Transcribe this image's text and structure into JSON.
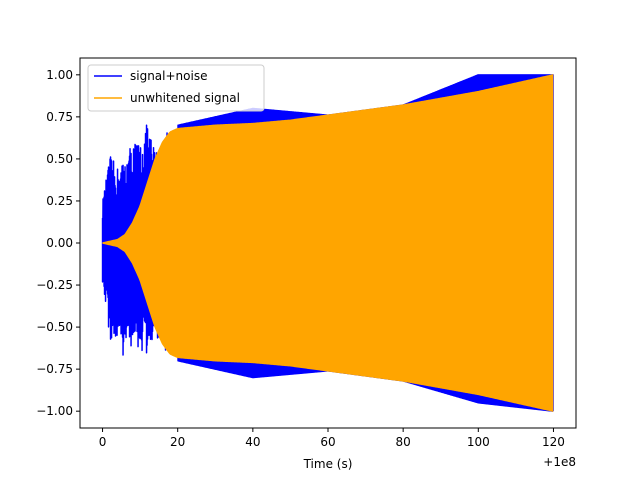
{
  "chart_data": {
    "type": "line",
    "title": "",
    "xlabel": "Time (s)",
    "ylabel": "",
    "x_offset_label": "+1e8",
    "xlim": [
      -6,
      126
    ],
    "ylim": [
      -1.1,
      1.1
    ],
    "x_ticks": [
      0,
      20,
      40,
      60,
      80,
      100,
      120
    ],
    "x_tick_labels": [
      "0",
      "20",
      "40",
      "60",
      "80",
      "100",
      "120"
    ],
    "y_ticks": [
      -1.0,
      -0.75,
      -0.5,
      -0.25,
      0.0,
      0.25,
      0.5,
      0.75,
      1.0
    ],
    "y_tick_labels": [
      "−1.00",
      "−0.75",
      "−0.50",
      "−0.25",
      "0.00",
      "0.25",
      "0.50",
      "0.75",
      "1.00"
    ],
    "grid": false,
    "legend_position": "top-left",
    "series": [
      {
        "name": "signal+noise",
        "color": "#0000ff",
        "x_range": [
          0,
          120
        ],
        "approx_envelope": {
          "x": [
            0,
            2,
            4,
            6,
            8,
            10,
            12,
            14,
            16,
            18,
            20,
            40,
            60,
            80,
            100,
            120
          ],
          "upper": [
            0.25,
            0.52,
            0.45,
            0.5,
            0.62,
            0.6,
            0.72,
            0.55,
            0.62,
            0.7,
            0.7,
            0.8,
            0.76,
            0.82,
            1.0,
            1.0
          ],
          "lower": [
            -0.25,
            -0.58,
            -0.65,
            -0.68,
            -0.6,
            -0.65,
            -0.68,
            -0.55,
            -0.62,
            -0.7,
            -0.7,
            -0.8,
            -0.76,
            -0.82,
            -0.95,
            -1.0
          ]
        }
      },
      {
        "name": "unwhitened signal",
        "color": "#ffa500",
        "x_range": [
          0,
          120
        ],
        "approx_envelope": {
          "x": [
            0,
            4,
            6,
            8,
            10,
            12,
            14,
            16,
            18,
            20,
            30,
            40,
            50,
            60,
            70,
            80,
            90,
            100,
            110,
            120
          ],
          "upper": [
            0.0,
            0.02,
            0.05,
            0.12,
            0.22,
            0.36,
            0.5,
            0.6,
            0.66,
            0.68,
            0.7,
            0.71,
            0.73,
            0.76,
            0.79,
            0.82,
            0.86,
            0.9,
            0.95,
            1.0
          ]
        }
      }
    ]
  }
}
